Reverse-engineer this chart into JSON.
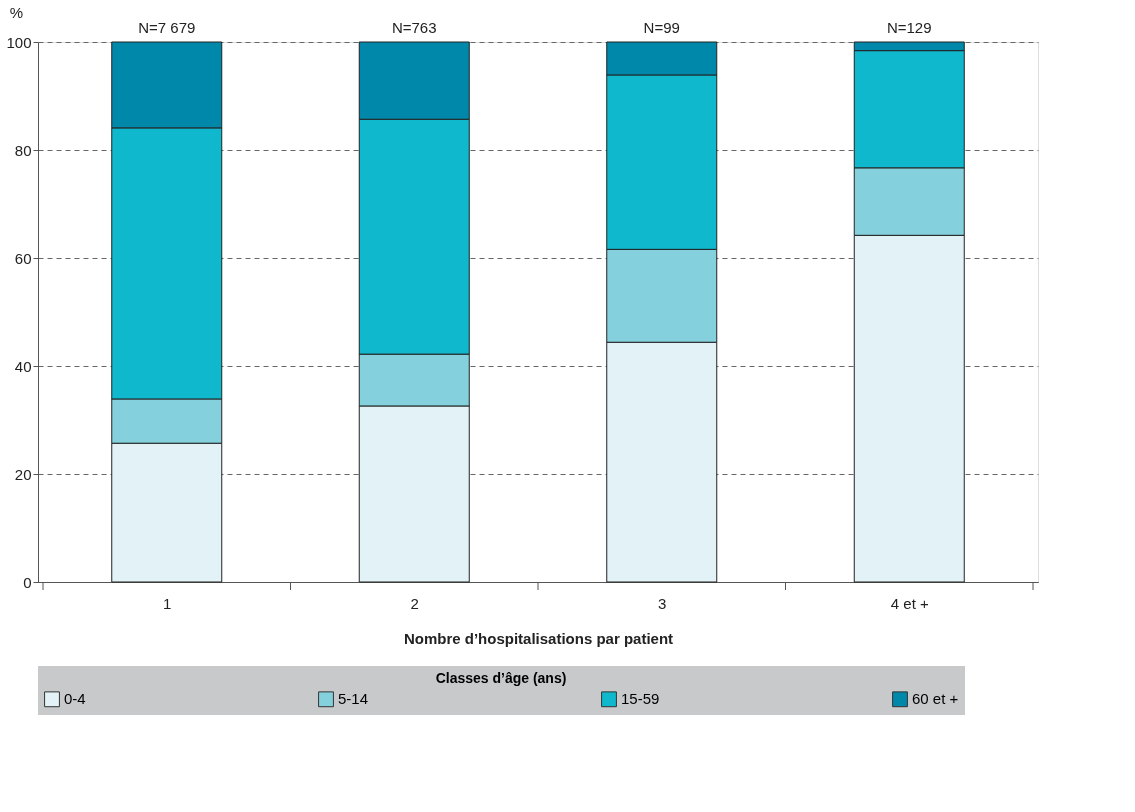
{
  "chart_data": {
    "type": "bar",
    "stacked": true,
    "xlabel": "Nombre d’hospitalisations par patient",
    "ylabel": "%",
    "legend_title": "Classes d’âge (ans)",
    "categories": [
      "1",
      "2",
      "3",
      "4 et +"
    ],
    "series": [
      {
        "name": "0-4",
        "color": "#e2f2f6",
        "values": [
          25.7,
          32.6,
          44.4,
          64.2
        ]
      },
      {
        "name": "5-14",
        "color": "#84d0dc",
        "values": [
          8.2,
          9.6,
          17.2,
          12.5
        ]
      },
      {
        "name": "15-59",
        "color": "#0fb8cc",
        "values": [
          50.2,
          43.5,
          32.3,
          21.7
        ]
      },
      {
        "name": "60 et +",
        "color": "#0088ab",
        "values": [
          15.9,
          14.3,
          6.1,
          1.6
        ]
      }
    ],
    "ylim": [
      0,
      100
    ],
    "yticks": [
      0,
      20,
      40,
      60,
      80,
      100
    ],
    "grid": "y",
    "legend": "bottom",
    "annotations": [
      {
        "text": "N=7 679",
        "x": "1",
        "y": 100
      },
      {
        "text": "N=763",
        "x": "2",
        "y": 100
      },
      {
        "text": "N=99",
        "x": "3",
        "y": 100
      },
      {
        "text": "N=129",
        "x": "4 et +",
        "y": 100
      }
    ]
  }
}
